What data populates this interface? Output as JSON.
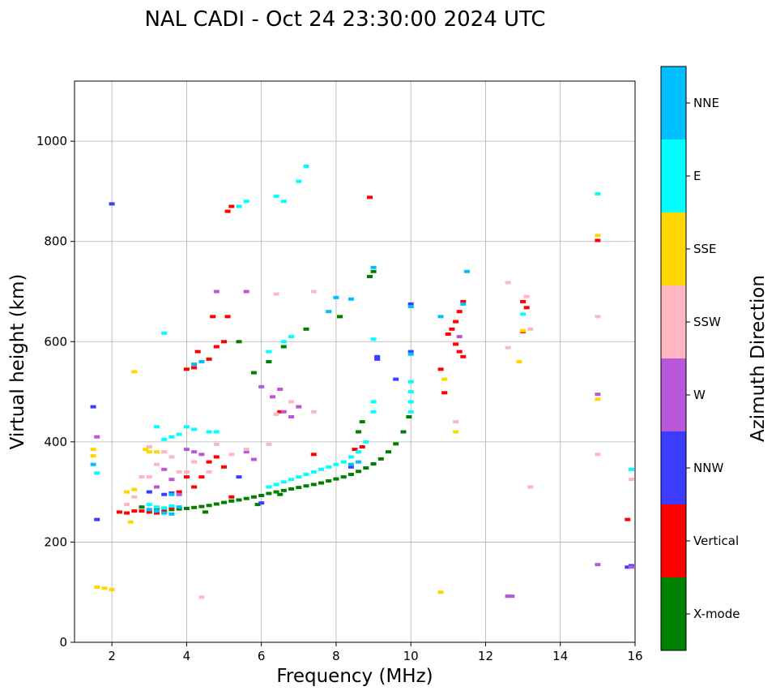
{
  "chart_data": {
    "type": "scatter",
    "title": "NAL CADI - Oct 24 23:30:00 2024 UTC",
    "xlabel": "Frequency (MHz)",
    "ylabel": "Virtual height (km)",
    "xlim": [
      1,
      16
    ],
    "ylim": [
      0,
      1120
    ],
    "xticks": [
      2,
      4,
      6,
      8,
      10,
      12,
      14,
      16
    ],
    "yticks": [
      0,
      200,
      400,
      600,
      800,
      1000
    ],
    "grid": true,
    "colorbar": {
      "label": "Azimuth Direction",
      "categories": [
        {
          "name": "X-mode",
          "color": "#008000"
        },
        {
          "name": "Vertical",
          "color": "#ff0000"
        },
        {
          "name": "NNW",
          "color": "#3c3cff"
        },
        {
          "name": "W",
          "color": "#b857d8"
        },
        {
          "name": "SSW",
          "color": "#ffb6c1"
        },
        {
          "name": "SSE",
          "color": "#ffd700"
        },
        {
          "name": "E",
          "color": "#00ffff"
        },
        {
          "name": "NNE",
          "color": "#00bfff"
        }
      ]
    },
    "series": [
      {
        "name": "X-mode trace",
        "category": "X-mode",
        "points": [
          [
            3.6,
            265
          ],
          [
            3.8,
            266
          ],
          [
            4.0,
            267
          ],
          [
            4.2,
            269
          ],
          [
            4.4,
            271
          ],
          [
            4.6,
            273
          ],
          [
            4.8,
            276
          ],
          [
            5.0,
            279
          ],
          [
            5.2,
            282
          ],
          [
            5.4,
            284
          ],
          [
            5.6,
            287
          ],
          [
            5.8,
            290
          ],
          [
            6.0,
            293
          ],
          [
            6.2,
            297
          ],
          [
            6.4,
            300
          ],
          [
            6.6,
            303
          ],
          [
            6.8,
            306
          ],
          [
            7.0,
            309
          ],
          [
            7.2,
            312
          ],
          [
            7.4,
            315
          ],
          [
            7.6,
            318
          ],
          [
            7.8,
            322
          ],
          [
            8.0,
            326
          ],
          [
            8.2,
            330
          ],
          [
            8.4,
            335
          ],
          [
            8.6,
            341
          ],
          [
            8.8,
            348
          ],
          [
            9.0,
            356
          ],
          [
            9.2,
            366
          ],
          [
            9.4,
            380
          ],
          [
            9.6,
            396
          ],
          [
            9.8,
            420
          ],
          [
            9.95,
            450
          ],
          [
            6.6,
            590
          ],
          [
            6.2,
            560
          ],
          [
            5.8,
            538
          ],
          [
            5.4,
            600
          ],
          [
            7.2,
            625
          ],
          [
            8.1,
            650
          ],
          [
            8.9,
            730
          ],
          [
            9.0,
            740
          ],
          [
            2.8,
            270
          ],
          [
            3.2,
            268
          ],
          [
            4.5,
            260
          ],
          [
            5.9,
            275
          ],
          [
            6.5,
            295
          ],
          [
            8.6,
            420
          ],
          [
            8.7,
            440
          ]
        ]
      },
      {
        "name": "Vertical",
        "category": "Vertical",
        "points": [
          [
            2.2,
            260
          ],
          [
            2.4,
            258
          ],
          [
            2.6,
            262
          ],
          [
            2.8,
            262
          ],
          [
            3.0,
            260
          ],
          [
            3.2,
            258
          ],
          [
            3.4,
            262
          ],
          [
            3.6,
            268
          ],
          [
            3.8,
            300
          ],
          [
            4.0,
            330
          ],
          [
            4.2,
            310
          ],
          [
            4.4,
            330
          ],
          [
            4.6,
            360
          ],
          [
            4.8,
            370
          ],
          [
            5.0,
            350
          ],
          [
            5.2,
            290
          ],
          [
            4.0,
            545
          ],
          [
            4.2,
            548
          ],
          [
            4.3,
            580
          ],
          [
            4.6,
            565
          ],
          [
            4.8,
            590
          ],
          [
            5.0,
            600
          ],
          [
            5.2,
            870
          ],
          [
            5.1,
            860
          ],
          [
            4.7,
            650
          ],
          [
            5.1,
            650
          ],
          [
            8.9,
            888
          ],
          [
            8.7,
            390
          ],
          [
            8.5,
            385
          ],
          [
            6.5,
            460
          ],
          [
            7.4,
            375
          ],
          [
            11.0,
            615
          ],
          [
            11.1,
            625
          ],
          [
            11.2,
            595
          ],
          [
            11.3,
            580
          ],
          [
            11.4,
            570
          ],
          [
            11.3,
            660
          ],
          [
            11.4,
            680
          ],
          [
            10.8,
            545
          ],
          [
            10.9,
            498
          ],
          [
            11.2,
            640
          ],
          [
            13.0,
            620
          ],
          [
            13.0,
            680
          ],
          [
            13.1,
            668
          ],
          [
            15.0,
            802
          ],
          [
            15.8,
            245
          ]
        ]
      },
      {
        "name": "NNW",
        "category": "NNW",
        "points": [
          [
            1.5,
            470
          ],
          [
            1.6,
            245
          ],
          [
            2.0,
            875
          ],
          [
            3.0,
            300
          ],
          [
            3.2,
            310
          ],
          [
            3.4,
            295
          ],
          [
            3.6,
            298
          ],
          [
            5.4,
            330
          ],
          [
            6.0,
            278
          ],
          [
            8.4,
            350
          ],
          [
            9.1,
            570
          ],
          [
            9.1,
            565
          ],
          [
            9.6,
            525
          ],
          [
            10.0,
            675
          ],
          [
            10.0,
            580
          ],
          [
            15.8,
            150
          ],
          [
            15.9,
            153
          ]
        ]
      },
      {
        "name": "W",
        "category": "W",
        "points": [
          [
            1.6,
            410
          ],
          [
            3.2,
            310
          ],
          [
            3.4,
            345
          ],
          [
            3.6,
            325
          ],
          [
            3.8,
            295
          ],
          [
            4.0,
            385
          ],
          [
            4.2,
            380
          ],
          [
            4.4,
            375
          ],
          [
            4.8,
            700
          ],
          [
            5.6,
            700
          ],
          [
            6.0,
            510
          ],
          [
            6.3,
            490
          ],
          [
            6.5,
            505
          ],
          [
            6.6,
            460
          ],
          [
            6.8,
            450
          ],
          [
            7.0,
            470
          ],
          [
            5.8,
            365
          ],
          [
            5.6,
            380
          ],
          [
            11.3,
            610
          ],
          [
            12.6,
            92
          ],
          [
            12.7,
            92
          ],
          [
            15.0,
            495
          ],
          [
            15.0,
            155
          ],
          [
            15.9,
            150
          ]
        ]
      },
      {
        "name": "SSW",
        "category": "SSW",
        "points": [
          [
            2.4,
            275
          ],
          [
            2.6,
            290
          ],
          [
            2.8,
            330
          ],
          [
            3.0,
            330
          ],
          [
            3.2,
            355
          ],
          [
            3.4,
            380
          ],
          [
            3.6,
            370
          ],
          [
            3.8,
            340
          ],
          [
            4.0,
            340
          ],
          [
            4.2,
            360
          ],
          [
            4.6,
            340
          ],
          [
            4.8,
            395
          ],
          [
            5.2,
            375
          ],
          [
            5.6,
            385
          ],
          [
            6.2,
            395
          ],
          [
            6.4,
            455
          ],
          [
            6.8,
            480
          ],
          [
            3.0,
            390
          ],
          [
            4.4,
            90
          ],
          [
            6.4,
            695
          ],
          [
            7.4,
            700
          ],
          [
            7.4,
            460
          ],
          [
            11.2,
            440
          ],
          [
            12.6,
            718
          ],
          [
            12.6,
            588
          ],
          [
            13.1,
            690
          ],
          [
            13.2,
            625
          ],
          [
            13.2,
            310
          ],
          [
            15.0,
            650
          ],
          [
            15.0,
            375
          ],
          [
            15.9,
            325
          ]
        ]
      },
      {
        "name": "SSE",
        "category": "SSE",
        "points": [
          [
            1.5,
            385
          ],
          [
            1.5,
            372
          ],
          [
            1.6,
            110
          ],
          [
            1.8,
            108
          ],
          [
            2.0,
            105
          ],
          [
            2.4,
            300
          ],
          [
            2.5,
            240
          ],
          [
            2.6,
            305
          ],
          [
            2.9,
            385
          ],
          [
            3.0,
            380
          ],
          [
            3.2,
            380
          ],
          [
            2.6,
            540
          ],
          [
            10.8,
            100
          ],
          [
            10.9,
            525
          ],
          [
            11.2,
            420
          ],
          [
            12.9,
            560
          ],
          [
            13.0,
            622
          ],
          [
            15.0,
            812
          ],
          [
            15.0,
            485
          ]
        ]
      },
      {
        "name": "E",
        "category": "E",
        "points": [
          [
            1.6,
            338
          ],
          [
            3.2,
            430
          ],
          [
            3.4,
            405
          ],
          [
            3.6,
            410
          ],
          [
            3.8,
            415
          ],
          [
            4.0,
            430
          ],
          [
            4.2,
            425
          ],
          [
            4.6,
            420
          ],
          [
            4.8,
            420
          ],
          [
            3.0,
            275
          ],
          [
            3.2,
            270
          ],
          [
            3.4,
            268
          ],
          [
            3.6,
            272
          ],
          [
            6.2,
            310
          ],
          [
            6.4,
            315
          ],
          [
            6.6,
            320
          ],
          [
            6.8,
            325
          ],
          [
            7.0,
            330
          ],
          [
            7.2,
            335
          ],
          [
            7.4,
            340
          ],
          [
            7.6,
            345
          ],
          [
            7.8,
            350
          ],
          [
            8.0,
            355
          ],
          [
            8.2,
            360
          ],
          [
            8.4,
            370
          ],
          [
            8.6,
            380
          ],
          [
            8.8,
            400
          ],
          [
            9.0,
            460
          ],
          [
            9.0,
            480
          ],
          [
            9.0,
            605
          ],
          [
            6.2,
            580
          ],
          [
            6.6,
            600
          ],
          [
            6.8,
            610
          ],
          [
            7.0,
            920
          ],
          [
            7.2,
            950
          ],
          [
            6.4,
            890
          ],
          [
            6.6,
            880
          ],
          [
            5.6,
            880
          ],
          [
            5.4,
            870
          ],
          [
            10.0,
            520
          ],
          [
            10.0,
            500
          ],
          [
            10.0,
            480
          ],
          [
            10.0,
            460
          ],
          [
            15.0,
            895
          ],
          [
            15.9,
            345
          ],
          [
            13.0,
            655
          ],
          [
            3.4,
            617
          ]
        ]
      },
      {
        "name": "NNE",
        "category": "NNE",
        "points": [
          [
            3.0,
            265
          ],
          [
            3.2,
            262
          ],
          [
            3.4,
            258
          ],
          [
            3.6,
            256
          ],
          [
            3.8,
            270
          ],
          [
            4.2,
            555
          ],
          [
            4.4,
            560
          ],
          [
            7.8,
            660
          ],
          [
            8.0,
            688
          ],
          [
            8.4,
            685
          ],
          [
            9.0,
            748
          ],
          [
            10.0,
            670
          ],
          [
            10.0,
            575
          ],
          [
            11.4,
            675
          ],
          [
            11.5,
            740
          ],
          [
            10.8,
            650
          ],
          [
            8.4,
            355
          ],
          [
            8.6,
            360
          ],
          [
            3.6,
            295
          ],
          [
            1.5,
            355
          ]
        ]
      }
    ]
  }
}
